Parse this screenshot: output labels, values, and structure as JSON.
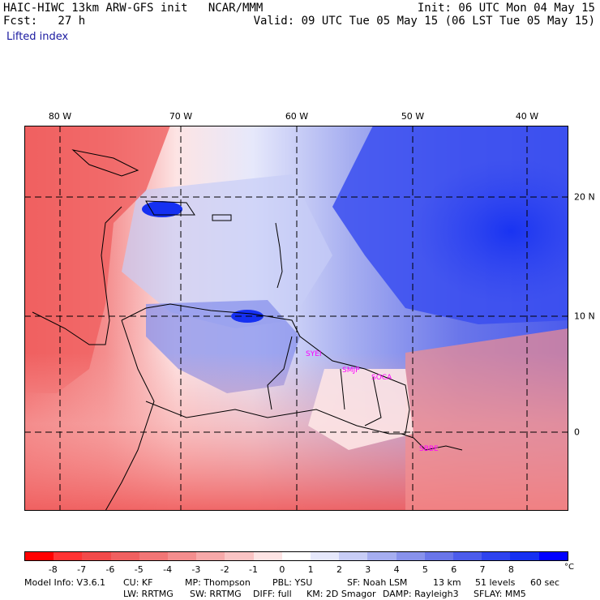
{
  "header": {
    "model_line": "HAIC-HIWC 13km ARW-GFS init   NCAR/MMM",
    "fcst_line": "Fcst:   27 h",
    "init_line": "Init: 06 UTC Mon 04 May 15",
    "valid_line": "Valid: 09 UTC Tue 05 May 15 (06 LST Tue 05 May 15)",
    "field_name": "Lifted index"
  },
  "map": {
    "lon_labels": [
      "80 W",
      "70 W",
      "60 W",
      "50 W",
      "40 W"
    ],
    "lat_labels": [
      "20 N",
      "10 N",
      "0"
    ],
    "stations": [
      "SYEI",
      "SMJP",
      "SOCA",
      "SBBE"
    ]
  },
  "colorbar": {
    "tick_labels": [
      "-8",
      "-7",
      "-6",
      "-5",
      "-4",
      "-3",
      "-2",
      "-1",
      "0",
      "1",
      "2",
      "3",
      "4",
      "5",
      "6",
      "7",
      "8"
    ],
    "unit": "°C",
    "colors": [
      "#ff0000",
      "#ff3333",
      "#f24a4a",
      "#f06060",
      "#f27676",
      "#f48e8e",
      "#f7a9a9",
      "#fac4c4",
      "#fde4e4",
      "#ffffff",
      "#e6e8fb",
      "#c8cdf6",
      "#a6aef0",
      "#8892ec",
      "#6a76ea",
      "#4c5cec",
      "#2e43ef",
      "#1530f2",
      "#0000ff"
    ]
  },
  "footer": {
    "line1": [
      "Model Info: V3.6.1",
      "CU: KF",
      "MP: Thompson",
      "PBL: YSU",
      "SF: Noah LSM",
      "13 km",
      "51 levels",
      "60 sec"
    ],
    "line2": [
      "LW: RRTMG",
      "SW: RRTMG",
      "DIFF: full",
      "KM: 2D Smagor",
      "DAMP: Rayleigh3",
      "SFLAY: MM5"
    ]
  }
}
